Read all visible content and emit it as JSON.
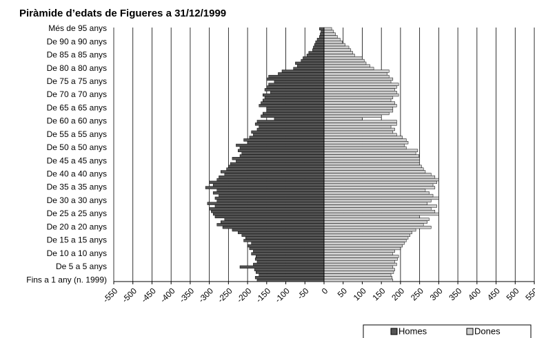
{
  "chart_data": {
    "type": "pyramid",
    "title": "Piràmide d’edats de Figueres a 31/12/1999",
    "categories": [
      "Fins a 1 any (n. 1999)",
      null,
      null,
      null,
      null,
      "De 5 a 5 anys",
      null,
      null,
      null,
      null,
      "De 10 a 10 anys",
      null,
      null,
      null,
      null,
      "De 15 a 15 anys",
      null,
      null,
      null,
      null,
      "De 20 a 20 anys",
      null,
      null,
      null,
      null,
      "De 25 a 25 anys",
      null,
      null,
      null,
      null,
      "De 30 a 30 anys",
      null,
      null,
      null,
      null,
      "De 35 a 35 anys",
      null,
      null,
      null,
      null,
      "De 40 a 40 anys",
      null,
      null,
      null,
      null,
      "De 45 a 45 anys",
      null,
      null,
      null,
      null,
      "De 50 a 50 anys",
      null,
      null,
      null,
      null,
      "De 55 a 55 anys",
      null,
      null,
      null,
      null,
      "De 60 a 60 anys",
      null,
      null,
      null,
      null,
      "De 65 a 65 anys",
      null,
      null,
      null,
      null,
      "De 70 a 70 anys",
      null,
      null,
      null,
      null,
      "De 75 a 75 anys",
      null,
      null,
      null,
      null,
      "De 80 a 80 anys",
      null,
      null,
      null,
      null,
      "De 85 a 85 anys",
      null,
      null,
      null,
      null,
      "De 90 a 90 anys",
      null,
      null,
      null,
      null,
      "Més de 95 anys"
    ],
    "series": [
      {
        "name": "Homes",
        "color": "#555555",
        "values": [
          -175,
          -180,
          -170,
          -178,
          -182,
          -220,
          -185,
          -175,
          -180,
          -178,
          -190,
          -185,
          -195,
          -200,
          -190,
          -210,
          -205,
          -215,
          -225,
          -240,
          -265,
          -280,
          -270,
          -260,
          -285,
          -290,
          -295,
          -300,
          -285,
          -305,
          -280,
          -285,
          -275,
          -290,
          -280,
          -310,
          -290,
          -300,
          -280,
          -275,
          -260,
          -270,
          -255,
          -250,
          -245,
          -230,
          -240,
          -220,
          -215,
          -225,
          -220,
          -230,
          -200,
          -210,
          -195,
          -185,
          -190,
          -175,
          -170,
          -180,
          -175,
          -130,
          -165,
          -160,
          -150,
          -150,
          -170,
          -165,
          -160,
          -155,
          -160,
          -140,
          -155,
          -150,
          -145,
          -130,
          -150,
          -145,
          -120,
          -110,
          -80,
          -70,
          -75,
          -60,
          -55,
          -45,
          -40,
          -30,
          -28,
          -25,
          -22,
          -18,
          -12,
          -10,
          -8,
          -12
        ]
      },
      {
        "name": "Dones",
        "color": "#d0d0d0",
        "values": [
          180,
          178,
          175,
          182,
          185,
          180,
          190,
          185,
          192,
          195,
          180,
          185,
          200,
          205,
          210,
          215,
          220,
          225,
          230,
          240,
          280,
          260,
          270,
          275,
          250,
          300,
          290,
          280,
          295,
          270,
          280,
          300,
          285,
          275,
          265,
          290,
          285,
          295,
          300,
          290,
          280,
          265,
          260,
          255,
          250,
          250,
          250,
          248,
          240,
          245,
          215,
          210,
          220,
          215,
          205,
          190,
          180,
          185,
          175,
          190,
          190,
          100,
          150,
          170,
          180,
          180,
          190,
          185,
          175,
          180,
          195,
          190,
          185,
          190,
          195,
          175,
          180,
          170,
          165,
          170,
          130,
          120,
          110,
          105,
          100,
          80,
          75,
          70,
          65,
          55,
          48,
          42,
          35,
          30,
          25,
          20
        ]
      }
    ],
    "xlim": [
      -550,
      550
    ],
    "xticks": [
      -550,
      -500,
      -450,
      -400,
      -350,
      -300,
      -250,
      -200,
      -150,
      -100,
      -50,
      0,
      50,
      100,
      150,
      200,
      250,
      300,
      350,
      400,
      450,
      500,
      550
    ],
    "grid": true,
    "legend": "bottom-right"
  }
}
